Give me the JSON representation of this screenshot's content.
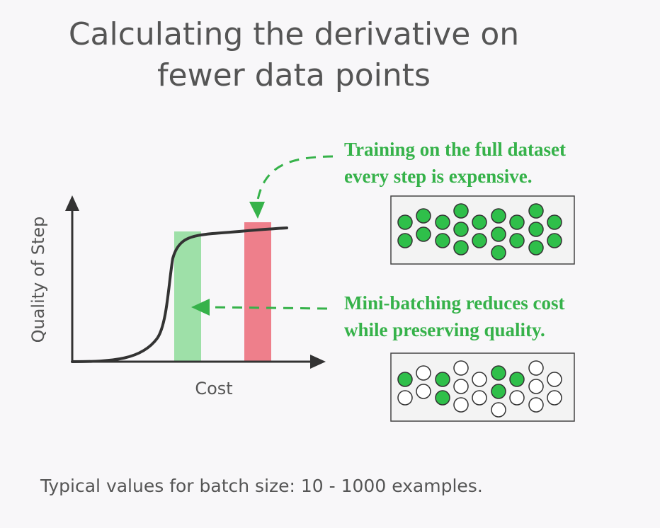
{
  "title": {
    "line1": "Calculating the derivative on",
    "line2": "fewer data points"
  },
  "plot": {
    "y_axis_label": "Quality of Step",
    "x_axis_label": "Cost",
    "green_bar_color": "#9ee0a8",
    "red_bar_color": "#ee7f8b"
  },
  "callouts": {
    "full_dataset": {
      "line1": "Training on the full dataset",
      "line2": "every step is expensive."
    },
    "mini_batch": {
      "line1": "Mini-batching reduces cost",
      "line2": "while preserving quality."
    }
  },
  "colors": {
    "accent_green": "#36b24a",
    "dot_green": "#2fbf4a",
    "text_gray": "#555555"
  },
  "footer": "Typical values for batch size: 10 - 1000 examples."
}
